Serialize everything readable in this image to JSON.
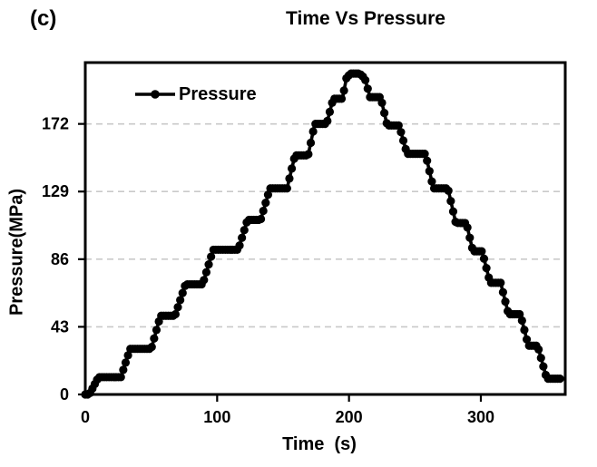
{
  "panel_label": "(c)",
  "chart_data": {
    "type": "line",
    "title": "Time Vs Pressure",
    "xlabel": "Time  (s)",
    "ylabel": "Pressure(MPa)",
    "xlim": [
      0,
      364
    ],
    "ylim": [
      0,
      211
    ],
    "xticks": [
      0,
      100,
      200,
      300
    ],
    "yticks": [
      0,
      43,
      86,
      129,
      172
    ],
    "grid": "horizontal-dashed",
    "legend_position": "top-left-inside",
    "line_color": "#000000",
    "grid_color": "#c9c9c9",
    "marker_interval_s": 1.8,
    "series": [
      {
        "name": "Pressure",
        "points": [
          [
            0,
            0
          ],
          [
            3,
            0
          ],
          [
            10,
            11
          ],
          [
            27,
            11
          ],
          [
            34,
            29
          ],
          [
            50,
            29
          ],
          [
            57,
            50
          ],
          [
            68,
            50
          ],
          [
            76,
            70
          ],
          [
            89,
            70
          ],
          [
            97,
            92
          ],
          [
            116,
            92
          ],
          [
            123,
            111
          ],
          [
            133,
            111
          ],
          [
            140,
            131
          ],
          [
            153,
            131
          ],
          [
            159,
            152
          ],
          [
            169,
            152
          ],
          [
            174,
            172
          ],
          [
            183,
            172
          ],
          [
            188,
            188
          ],
          [
            195,
            188
          ],
          [
            198,
            201
          ],
          [
            201,
            204
          ],
          [
            208,
            204
          ],
          [
            212,
            201
          ],
          [
            216,
            189
          ],
          [
            224,
            189
          ],
          [
            229,
            171
          ],
          [
            238,
            171
          ],
          [
            244,
            153
          ],
          [
            258,
            153
          ],
          [
            264,
            131
          ],
          [
            275,
            131
          ],
          [
            281,
            109
          ],
          [
            289,
            109
          ],
          [
            294,
            91
          ],
          [
            301,
            91
          ],
          [
            307,
            71
          ],
          [
            315,
            71
          ],
          [
            321,
            51
          ],
          [
            330,
            51
          ],
          [
            336,
            31
          ],
          [
            343,
            31
          ],
          [
            350,
            10
          ],
          [
            361,
            10
          ]
        ]
      }
    ]
  }
}
